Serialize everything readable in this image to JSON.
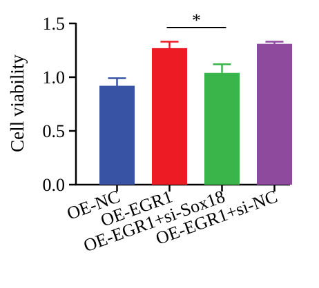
{
  "chart_data": {
    "type": "bar",
    "title": "",
    "xlabel": "",
    "ylabel": "Cell viability",
    "ylim": [
      0,
      1.5
    ],
    "yticks": [
      "0.0",
      "0.5",
      "1.0",
      "1.5"
    ],
    "grid": false,
    "legend": "none",
    "categories": [
      "OE-NC",
      "OE-EGR1",
      "OE-EGR1+si-Sox18",
      "OE-EGR1+si-NC"
    ],
    "values": [
      0.92,
      1.27,
      1.04,
      1.31
    ],
    "errors": [
      0.07,
      0.06,
      0.08,
      0.02
    ],
    "colors": [
      "#3953a4",
      "#ed1c24",
      "#3ab54a",
      "#8e4b9e"
    ],
    "significance": {
      "from": 1,
      "to": 2,
      "label": "*"
    }
  }
}
